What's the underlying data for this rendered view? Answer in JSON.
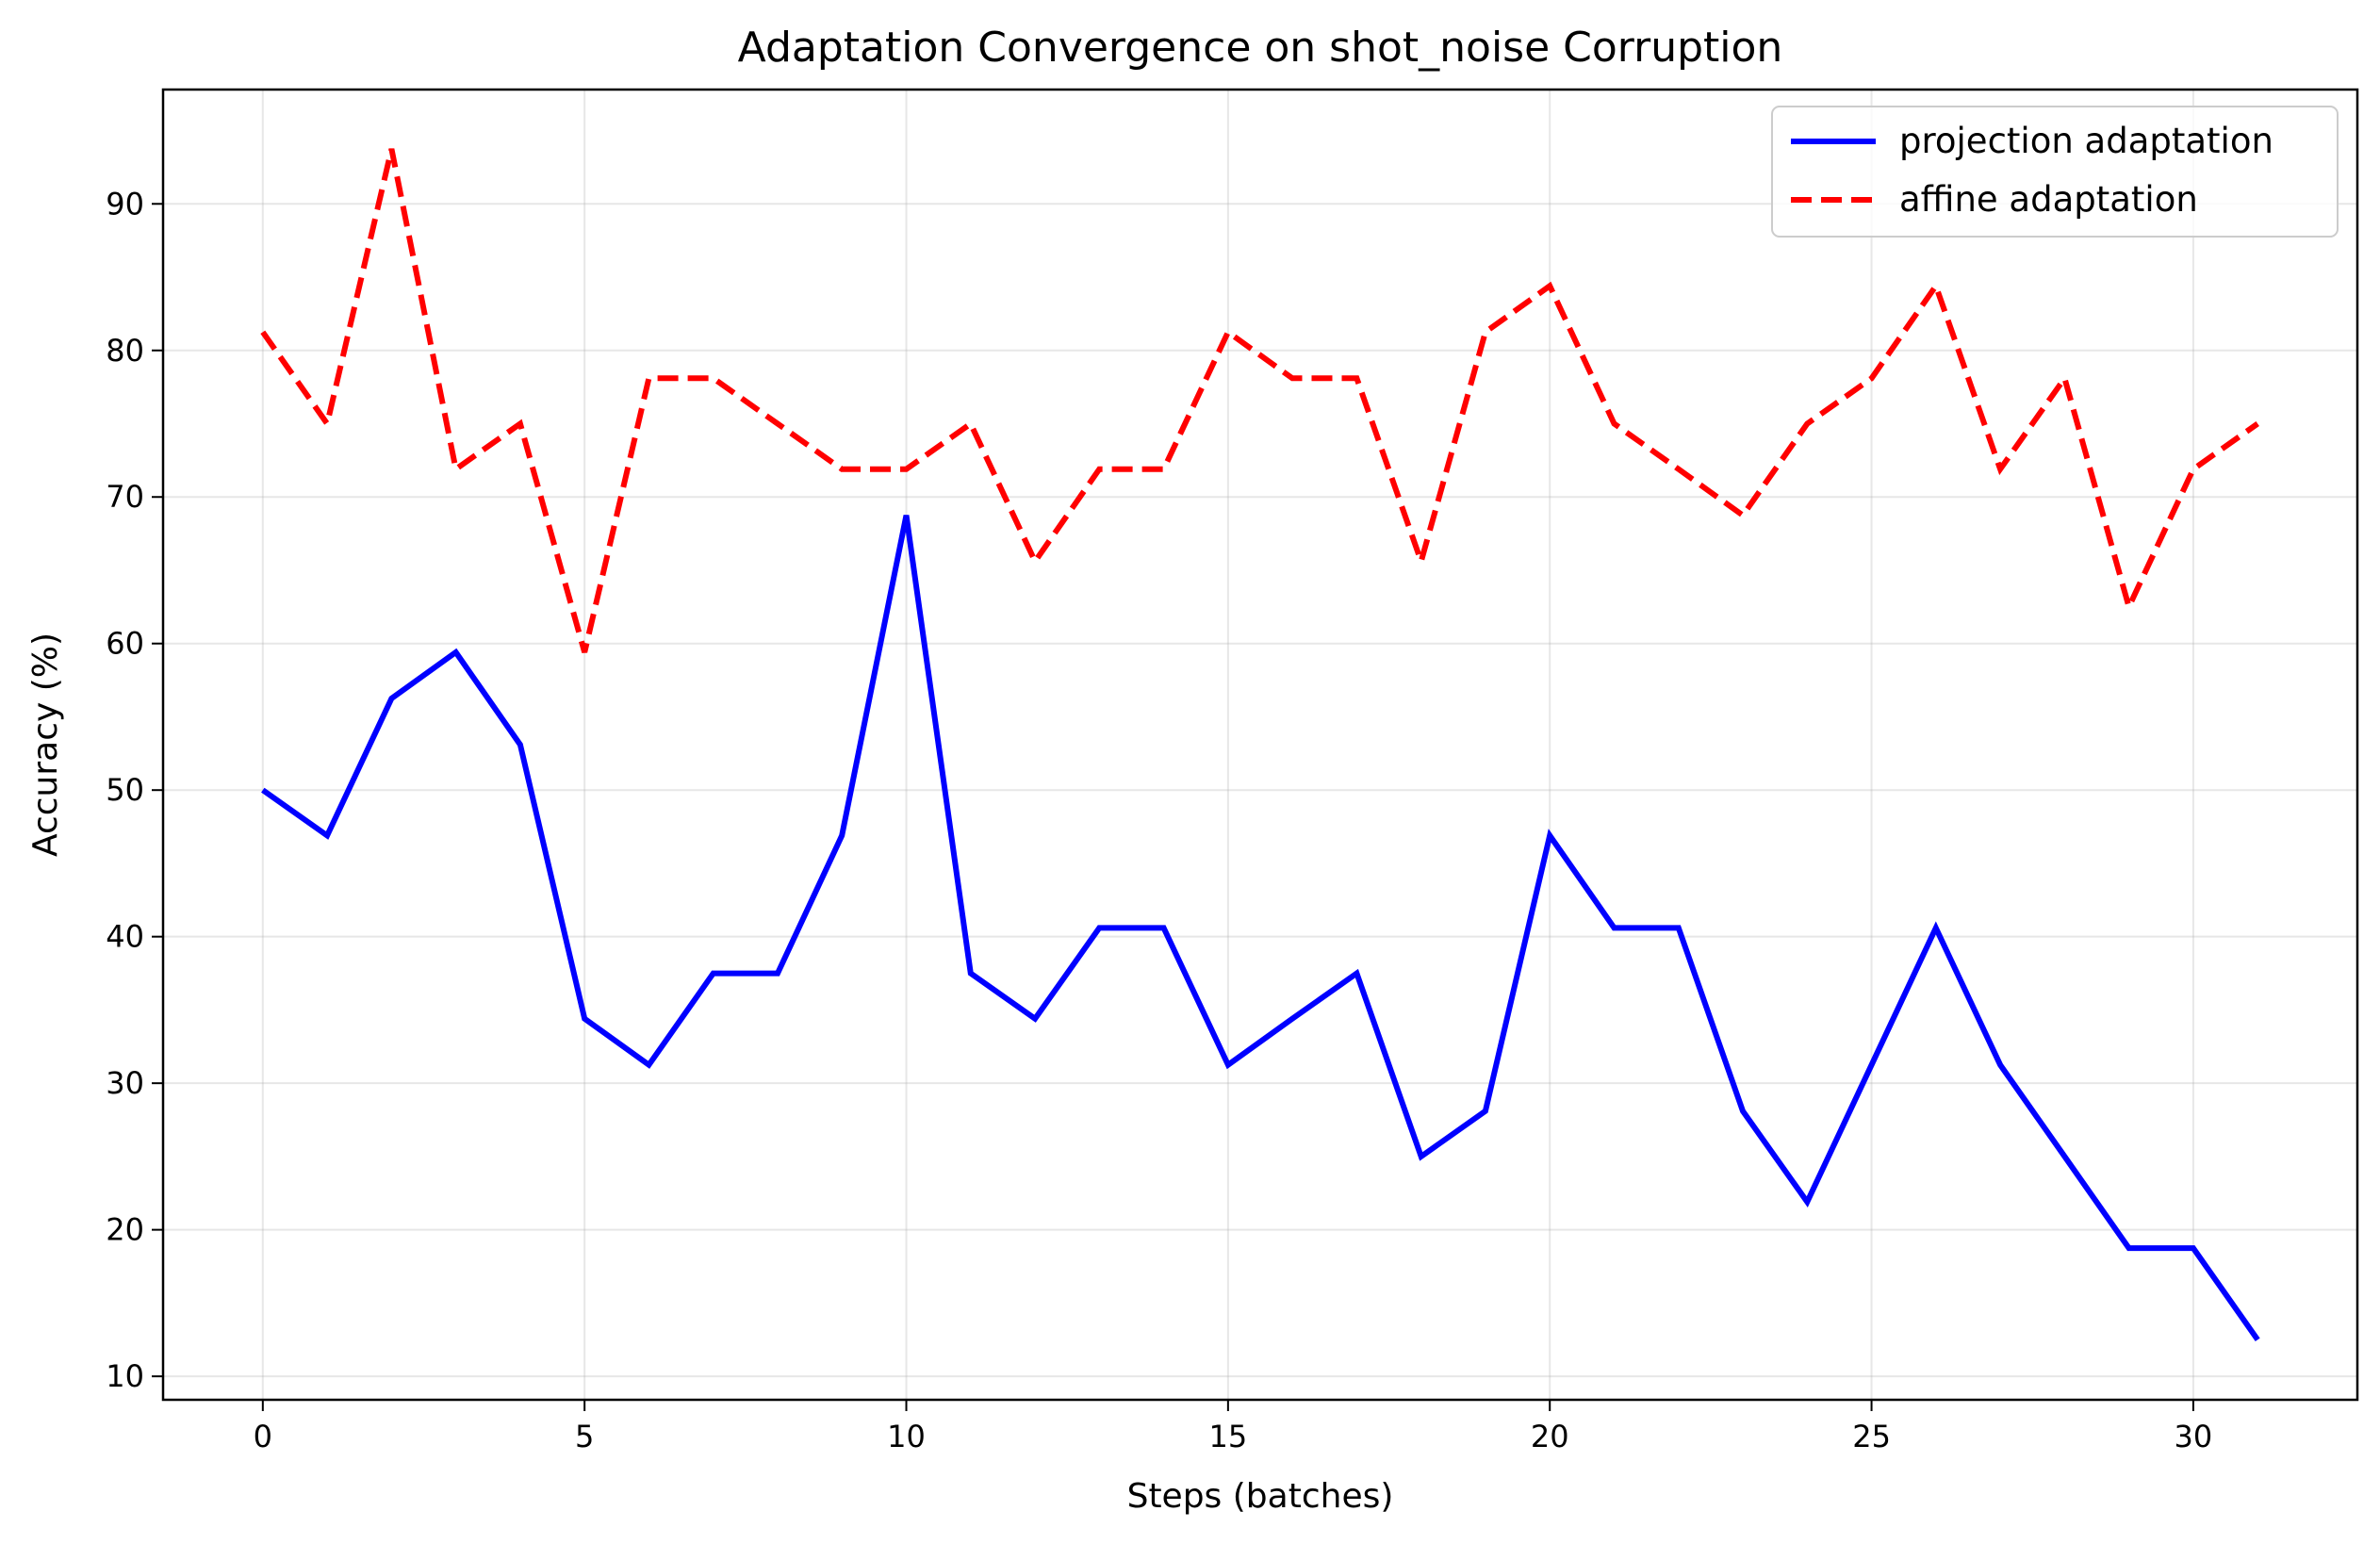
{
  "chart_data": {
    "type": "line",
    "title": "Adaptation Convergence on shot_noise Corruption",
    "xlabel": "Steps (batches)",
    "ylabel": "Accuracy (%)",
    "xlim": [
      -1.55,
      32.55
    ],
    "ylim": [
      8.4,
      97.8
    ],
    "xticks": [
      0,
      5,
      10,
      15,
      20,
      25,
      30
    ],
    "yticks": [
      10,
      20,
      30,
      40,
      50,
      60,
      70,
      80,
      90
    ],
    "grid": true,
    "legend_position": "top-right",
    "x": [
      0,
      1,
      2,
      3,
      4,
      5,
      6,
      7,
      8,
      9,
      10,
      11,
      12,
      13,
      14,
      15,
      16,
      17,
      18,
      19,
      20,
      21,
      22,
      23,
      24,
      25,
      26,
      27,
      28,
      29,
      30,
      31
    ],
    "series": [
      {
        "name": "projection adaptation",
        "color": "#0000ff",
        "style": "solid",
        "values": [
          50.0,
          46.9,
          56.25,
          59.4,
          53.1,
          34.4,
          31.25,
          37.5,
          37.5,
          46.9,
          68.75,
          37.5,
          34.4,
          40.6,
          40.6,
          31.25,
          34.4,
          37.5,
          25.0,
          28.1,
          46.9,
          40.6,
          40.6,
          28.1,
          21.9,
          31.25,
          40.6,
          31.25,
          25.0,
          18.75,
          18.75,
          12.5
        ]
      },
      {
        "name": "affine adaptation",
        "color": "#ff0000",
        "style": "dashed",
        "values": [
          81.25,
          75.0,
          93.75,
          71.9,
          75.0,
          59.4,
          78.1,
          78.1,
          75.0,
          71.9,
          71.9,
          75.0,
          65.6,
          71.9,
          71.9,
          81.25,
          78.1,
          78.1,
          65.6,
          81.25,
          84.4,
          75.0,
          71.9,
          68.75,
          75.0,
          78.1,
          84.4,
          71.9,
          78.1,
          62.5,
          71.9,
          75.0
        ]
      }
    ]
  }
}
